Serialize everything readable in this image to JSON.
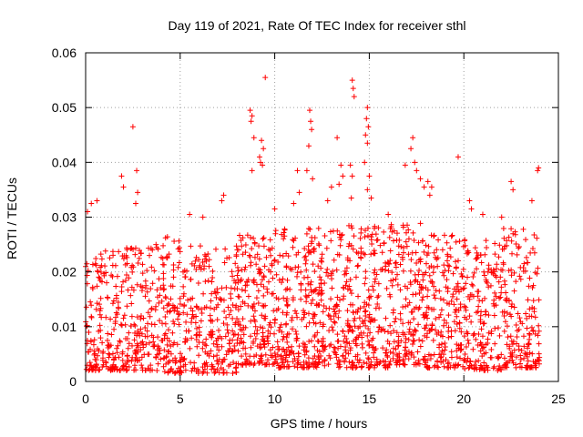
{
  "chart_data": {
    "type": "scatter",
    "title": "Day 119 of 2021, Rate Of TEC Index for receiver sthl",
    "xlabel": "GPS time / hours",
    "ylabel": "ROTI / TECUs",
    "xlim": [
      0,
      25
    ],
    "ylim": [
      0,
      0.06
    ],
    "x_ticks": [
      {
        "value": 0,
        "label": "0"
      },
      {
        "value": 5,
        "label": "5"
      },
      {
        "value": 10,
        "label": "10"
      },
      {
        "value": 15,
        "label": "15"
      },
      {
        "value": 20,
        "label": "20"
      },
      {
        "value": 25,
        "label": "25"
      }
    ],
    "y_ticks": [
      {
        "value": 0,
        "label": "0"
      },
      {
        "value": 0.01,
        "label": "0.01"
      },
      {
        "value": 0.02,
        "label": "0.02"
      },
      {
        "value": 0.03,
        "label": "0.03"
      },
      {
        "value": 0.04,
        "label": "0.04"
      },
      {
        "value": 0.05,
        "label": "0.05"
      },
      {
        "value": 0.06,
        "label": "0.06"
      }
    ],
    "grid": true,
    "marker": "+",
    "marker_color": "#ff0000",
    "series": [
      {
        "name": "ROTI",
        "outliers": [
          [
            2.5,
            0.0465
          ],
          [
            1.9,
            0.0375
          ],
          [
            2.0,
            0.0355
          ],
          [
            2.7,
            0.0385
          ],
          [
            2.75,
            0.0345
          ],
          [
            2.65,
            0.0325
          ],
          [
            0.3,
            0.0325
          ],
          [
            0.6,
            0.033
          ],
          [
            0.1,
            0.031
          ],
          [
            8.7,
            0.0495
          ],
          [
            8.8,
            0.0485
          ],
          [
            8.75,
            0.0475
          ],
          [
            8.9,
            0.0445
          ],
          [
            8.8,
            0.0385
          ],
          [
            9.3,
            0.044
          ],
          [
            9.4,
            0.0425
          ],
          [
            9.2,
            0.041
          ],
          [
            9.35,
            0.0395
          ],
          [
            9.25,
            0.04
          ],
          [
            9.5,
            0.0555
          ],
          [
            11.85,
            0.0495
          ],
          [
            11.9,
            0.0475
          ],
          [
            11.95,
            0.046
          ],
          [
            11.8,
            0.043
          ],
          [
            11.7,
            0.0385
          ],
          [
            12.0,
            0.037
          ],
          [
            11.2,
            0.0385
          ],
          [
            11.3,
            0.0345
          ],
          [
            11.0,
            0.0325
          ],
          [
            13.3,
            0.0445
          ],
          [
            13.5,
            0.0395
          ],
          [
            13.6,
            0.0375
          ],
          [
            13.4,
            0.036
          ],
          [
            14.1,
            0.055
          ],
          [
            14.15,
            0.0535
          ],
          [
            14.2,
            0.052
          ],
          [
            14.0,
            0.0395
          ],
          [
            14.1,
            0.0375
          ],
          [
            14.05,
            0.0335
          ],
          [
            14.9,
            0.05
          ],
          [
            14.85,
            0.048
          ],
          [
            14.95,
            0.0465
          ],
          [
            14.8,
            0.045
          ],
          [
            14.9,
            0.0435
          ],
          [
            14.75,
            0.04
          ],
          [
            15.0,
            0.0375
          ],
          [
            14.9,
            0.035
          ],
          [
            15.1,
            0.0335
          ],
          [
            17.3,
            0.0445
          ],
          [
            17.2,
            0.0425
          ],
          [
            17.4,
            0.04
          ],
          [
            17.5,
            0.0385
          ],
          [
            17.7,
            0.037
          ],
          [
            17.9,
            0.0355
          ],
          [
            16.9,
            0.0395
          ],
          [
            18.1,
            0.0365
          ],
          [
            18.3,
            0.0355
          ],
          [
            18.2,
            0.034
          ],
          [
            19.7,
            0.041
          ],
          [
            20.3,
            0.033
          ],
          [
            20.4,
            0.0315
          ],
          [
            22.5,
            0.0365
          ],
          [
            22.6,
            0.035
          ],
          [
            23.9,
            0.0385
          ],
          [
            23.95,
            0.039
          ],
          [
            23.6,
            0.033
          ],
          [
            7.3,
            0.034
          ],
          [
            7.2,
            0.033
          ],
          [
            5.5,
            0.0305
          ],
          [
            6.2,
            0.03
          ],
          [
            10.0,
            0.0315
          ],
          [
            16.0,
            0.0305
          ],
          [
            21.0,
            0.0305
          ],
          [
            22.0,
            0.03
          ],
          [
            12.8,
            0.033
          ],
          [
            13.0,
            0.0355
          ]
        ],
        "bulk": [
          {
            "x0": 0.0,
            "x1": 2.0,
            "ymin": 0.002,
            "ymax": 0.024,
            "n": 180
          },
          {
            "x0": 2.0,
            "x1": 4.0,
            "ymin": 0.002,
            "ymax": 0.025,
            "n": 170
          },
          {
            "x0": 4.0,
            "x1": 6.0,
            "ymin": 0.0015,
            "ymax": 0.0265,
            "n": 180
          },
          {
            "x0": 6.0,
            "x1": 8.0,
            "ymin": 0.0015,
            "ymax": 0.025,
            "n": 170
          },
          {
            "x0": 8.0,
            "x1": 10.0,
            "ymin": 0.003,
            "ymax": 0.027,
            "n": 200
          },
          {
            "x0": 10.0,
            "x1": 12.0,
            "ymin": 0.0025,
            "ymax": 0.028,
            "n": 200
          },
          {
            "x0": 12.0,
            "x1": 14.0,
            "ymin": 0.0025,
            "ymax": 0.0285,
            "n": 200
          },
          {
            "x0": 14.0,
            "x1": 16.0,
            "ymin": 0.0025,
            "ymax": 0.0285,
            "n": 200
          },
          {
            "x0": 16.0,
            "x1": 18.0,
            "ymin": 0.003,
            "ymax": 0.029,
            "n": 200
          },
          {
            "x0": 18.0,
            "x1": 20.0,
            "ymin": 0.0025,
            "ymax": 0.027,
            "n": 190
          },
          {
            "x0": 20.0,
            "x1": 22.0,
            "ymin": 0.002,
            "ymax": 0.026,
            "n": 180
          },
          {
            "x0": 22.0,
            "x1": 24.0,
            "ymin": 0.0025,
            "ymax": 0.028,
            "n": 180
          }
        ]
      }
    ]
  }
}
